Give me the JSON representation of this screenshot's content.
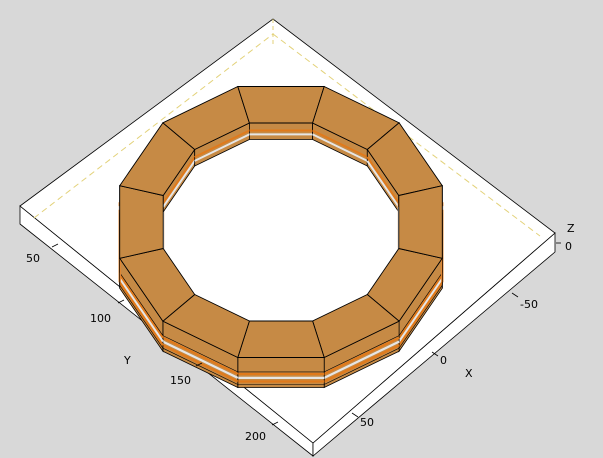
{
  "colors": {
    "background": "#d8d8d8",
    "plane": "#ffffff",
    "dash": "#e3d27a",
    "body": "#c68a45",
    "outline": "#000000",
    "stripeOrange": "#e07a1c",
    "stripeLight": "#e6e6e6"
  },
  "axes": {
    "x_label": "X",
    "y_label": "Y",
    "z_label": "Z",
    "y_ticks": [
      "50",
      "100",
      "150",
      "200"
    ],
    "x_ticks": [
      "-50",
      "0",
      "50"
    ],
    "z_ticks": [
      "0"
    ]
  }
}
